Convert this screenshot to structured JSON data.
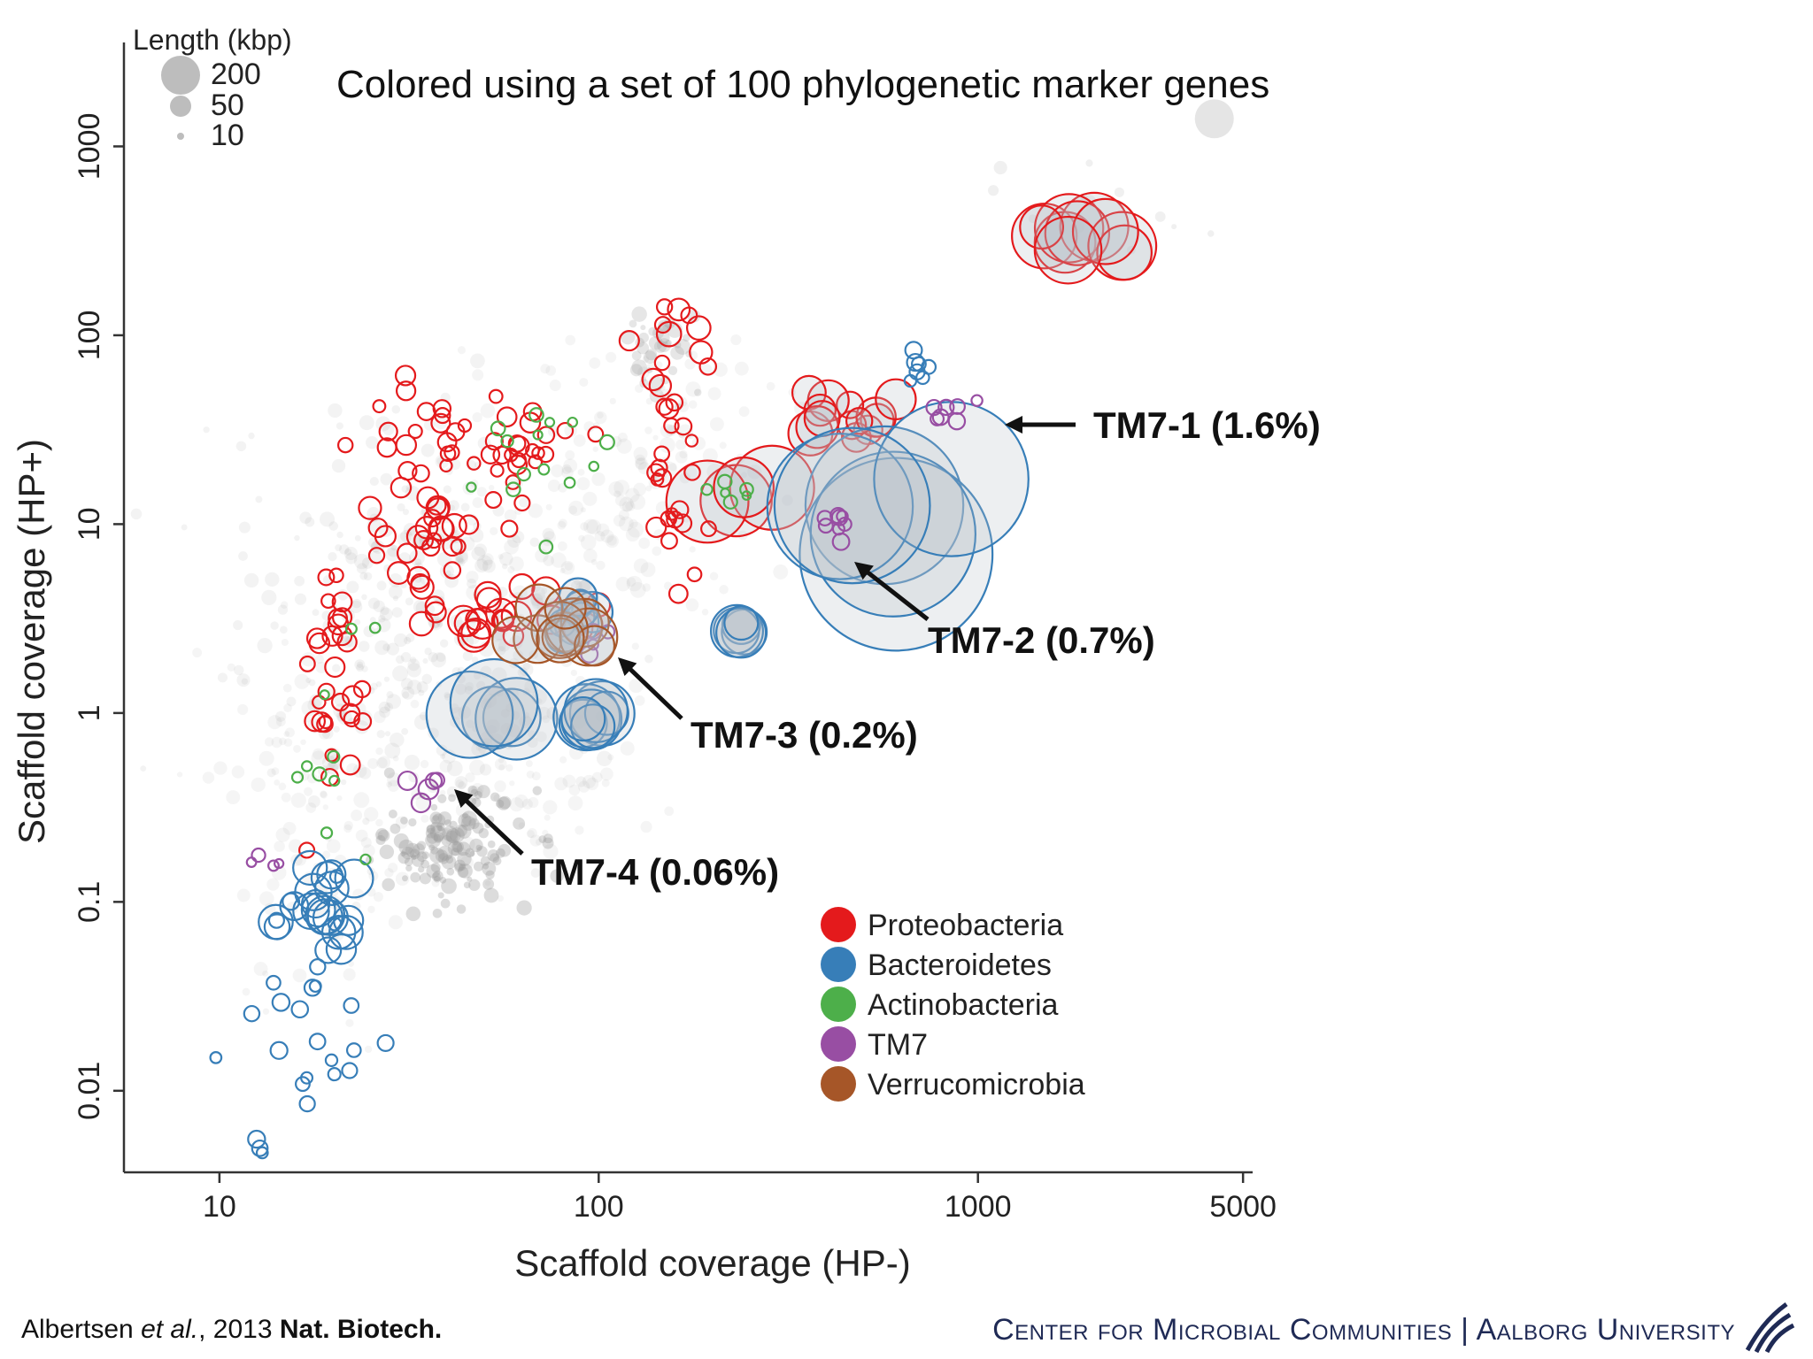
{
  "chart_data": {
    "type": "scatter",
    "title": "Colored using a set of 100 phylogenetic marker genes",
    "xlabel": "Scaffold coverage (HP-)",
    "ylabel": "Scaffold coverage (HP+)",
    "x_scale": "log",
    "y_scale": "log",
    "xlim": [
      5.6,
      5300
    ],
    "ylim": [
      0.0037,
      3550
    ],
    "x_ticks": [
      {
        "value": 10,
        "label": "10"
      },
      {
        "value": 100,
        "label": "100"
      },
      {
        "value": 1000,
        "label": "1000"
      },
      {
        "value": 5000,
        "label": "5000"
      }
    ],
    "y_ticks": [
      {
        "value": 0.01,
        "label": "0.01"
      },
      {
        "value": 0.1,
        "label": "0.1"
      },
      {
        "value": 1,
        "label": "1"
      },
      {
        "value": 10,
        "label": "10"
      },
      {
        "value": 100,
        "label": "100"
      },
      {
        "value": 1000,
        "label": "1000"
      }
    ],
    "grid": false,
    "size_legend": {
      "title": "Length (kbp)",
      "entries": [
        {
          "label": "200",
          "length": 200
        },
        {
          "label": "50",
          "length": 50
        },
        {
          "label": "10",
          "length": 10
        }
      ]
    },
    "legend": {
      "placement": "bottom-center",
      "entries": [
        {
          "label": "Proteobacteria",
          "color": "#e41a1c"
        },
        {
          "label": "Bacteroidetes",
          "color": "#377eb8"
        },
        {
          "label": "Actinobacteria",
          "color": "#4daf4a"
        },
        {
          "label": "TM7",
          "color": "#984ea3"
        },
        {
          "label": "Verrucomicrobia",
          "color": "#a65628"
        }
      ]
    },
    "clusters": [
      {
        "series": "Proteobacteria",
        "x": 1700,
        "y": 320,
        "length": 50,
        "count": 10,
        "sx": 0.06,
        "sy": 0.06
      },
      {
        "series": "Proteobacteria",
        "x": 450,
        "y": 38,
        "length": 20,
        "count": 14,
        "sx": 0.08,
        "sy": 0.07
      },
      {
        "series": "Proteobacteria",
        "x": 245,
        "y": 15,
        "length": 100,
        "count": 4,
        "sx": 0.05,
        "sy": 0.05
      },
      {
        "series": "Proteobacteria",
        "x": 150,
        "y": 80,
        "length": 6,
        "count": 12,
        "sx": 0.06,
        "sy": 0.12
      },
      {
        "series": "Proteobacteria",
        "x": 155,
        "y": 14,
        "length": 4,
        "count": 22,
        "sx": 0.06,
        "sy": 0.3
      },
      {
        "series": "Proteobacteria",
        "x": 33,
        "y": 9,
        "length": 6,
        "count": 30,
        "sx": 0.07,
        "sy": 0.18
      },
      {
        "series": "Proteobacteria",
        "x": 40,
        "y": 28,
        "length": 4,
        "count": 26,
        "sx": 0.12,
        "sy": 0.15
      },
      {
        "series": "Proteobacteria",
        "x": 62,
        "y": 28,
        "length": 4,
        "count": 18,
        "sx": 0.08,
        "sy": 0.15
      },
      {
        "series": "Proteobacteria",
        "x": 60,
        "y": 3.2,
        "length": 10,
        "count": 20,
        "sx": 0.1,
        "sy": 0.08
      },
      {
        "series": "Proteobacteria",
        "x": 20,
        "y": 1.5,
        "length": 4,
        "count": 30,
        "sx": 0.06,
        "sy": 0.3
      },
      {
        "series": "Bacteroidetes",
        "x": 580,
        "y": 12,
        "length": 400,
        "count": 6,
        "sx": 0.1,
        "sy": 0.2
      },
      {
        "series": "Bacteroidetes",
        "x": 700,
        "y": 70,
        "length": 3,
        "count": 7,
        "sx": 0.04,
        "sy": 0.05
      },
      {
        "series": "Bacteroidetes",
        "x": 240,
        "y": 2.7,
        "length": 30,
        "count": 6,
        "sx": 0.02,
        "sy": 0.03
      },
      {
        "series": "Bacteroidetes",
        "x": 88,
        "y": 3.2,
        "length": 20,
        "count": 8,
        "sx": 0.04,
        "sy": 0.04
      },
      {
        "series": "Bacteroidetes",
        "x": 55,
        "y": 1.0,
        "length": 80,
        "count": 5,
        "sx": 0.04,
        "sy": 0.05
      },
      {
        "series": "Bacteroidetes",
        "x": 88,
        "y": 0.85,
        "length": 50,
        "count": 8,
        "sx": 0.04,
        "sy": 0.05
      },
      {
        "series": "Bacteroidetes",
        "x": 18,
        "y": 0.08,
        "length": 15,
        "count": 20,
        "sx": 0.06,
        "sy": 0.15
      },
      {
        "series": "Bacteroidetes",
        "x": 15,
        "y": 0.025,
        "length": 3,
        "count": 26,
        "sx": 0.1,
        "sy": 0.35
      },
      {
        "series": "Actinobacteria",
        "x": 80,
        "y": 18,
        "length": 2,
        "count": 14,
        "sx": 0.1,
        "sy": 0.2
      },
      {
        "series": "Actinobacteria",
        "x": 20,
        "y": 1.0,
        "length": 2,
        "count": 10,
        "sx": 0.08,
        "sy": 0.3
      },
      {
        "series": "Actinobacteria",
        "x": 230,
        "y": 14,
        "length": 2,
        "count": 6,
        "sx": 0.06,
        "sy": 0.05
      },
      {
        "series": "TM7",
        "x": 850,
        "y": 42,
        "length": 3,
        "count": 7,
        "sx": 0.04,
        "sy": 0.04
      },
      {
        "series": "TM7",
        "x": 420,
        "y": 10,
        "length": 3,
        "count": 8,
        "sx": 0.03,
        "sy": 0.06
      },
      {
        "series": "TM7",
        "x": 97,
        "y": 2.5,
        "length": 3,
        "count": 4,
        "sx": 0.02,
        "sy": 0.04
      },
      {
        "series": "TM7",
        "x": 35,
        "y": 0.45,
        "length": 6,
        "count": 5,
        "sx": 0.02,
        "sy": 0.07
      },
      {
        "series": "TM7",
        "x": 13,
        "y": 0.16,
        "length": 2,
        "count": 4,
        "sx": 0.04,
        "sy": 0.05
      },
      {
        "series": "Verrucomicrobia",
        "x": 82,
        "y": 3.0,
        "length": 40,
        "count": 12,
        "sx": 0.04,
        "sy": 0.06
      }
    ],
    "annotations": [
      {
        "text": "TM7-1 (1.6%)",
        "x": 980,
        "y": 38
      },
      {
        "text": "TM7-2 (0.7%)",
        "x": 420,
        "y": 9
      },
      {
        "text": "TM7-3 (0.2%)",
        "x": 104,
        "y": 2.4
      },
      {
        "text": "TM7-4 (0.06%)",
        "x": 37,
        "y": 0.44
      }
    ]
  },
  "footer": {
    "citation_authors": "Albertsen ",
    "citation_etal": "et al.",
    "citation_year": ", 2013 ",
    "citation_journal": "Nat. Biotech.",
    "center": "Center for Microbial Communities | Aalborg University"
  }
}
